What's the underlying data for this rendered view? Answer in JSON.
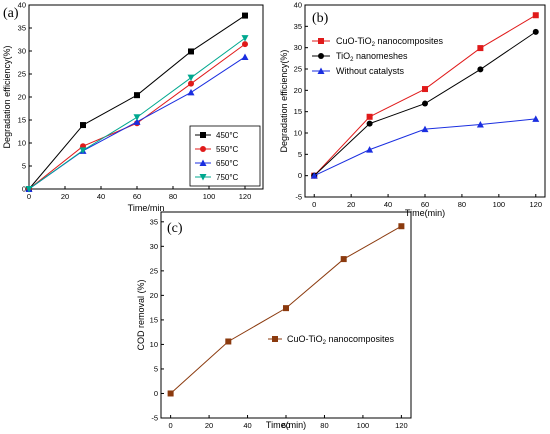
{
  "chart_data": [
    {
      "panel": "(a)",
      "type": "line",
      "xlabel": "Time/min",
      "ylabel": "Degradation efficiency(%)",
      "xlim": [
        0,
        130
      ],
      "ylim": [
        0,
        40
      ],
      "xticks": [
        0,
        20,
        40,
        60,
        80,
        100,
        120
      ],
      "yticks": [
        0,
        5,
        10,
        15,
        20,
        25,
        30,
        35,
        40
      ],
      "x": [
        0,
        30,
        60,
        90,
        120
      ],
      "legend_position": "bottom-right",
      "series": [
        {
          "name": "450°C",
          "color": "#000000",
          "marker": "square",
          "values": [
            0,
            13.9,
            20.4,
            29.9,
            37.7
          ]
        },
        {
          "name": "550°C",
          "color": "#e01a1a",
          "marker": "circle",
          "values": [
            0,
            9.3,
            14.3,
            22.9,
            31.5
          ]
        },
        {
          "name": "650°C",
          "color": "#1a2ee0",
          "marker": "triangle-up",
          "values": [
            0,
            8.3,
            14.6,
            21.0,
            28.7
          ]
        },
        {
          "name": "750°C",
          "color": "#00a88f",
          "marker": "triangle-down",
          "values": [
            0,
            8.4,
            15.6,
            24.2,
            32.8
          ]
        }
      ]
    },
    {
      "panel": "(b)",
      "type": "line",
      "xlabel": "Time(min)",
      "ylabel": "Degradation efficiency(%)",
      "xlim": [
        -5,
        125
      ],
      "ylim": [
        -5,
        40
      ],
      "xticks": [
        0,
        20,
        40,
        60,
        80,
        100,
        120
      ],
      "yticks": [
        -5,
        0,
        5,
        10,
        15,
        20,
        25,
        30,
        35,
        40
      ],
      "x": [
        0,
        30,
        60,
        90,
        120
      ],
      "legend_position": "top-left",
      "series": [
        {
          "name_main": "CuO-TiO",
          "name_sub": "2",
          "name_rest": " nanocomposites",
          "color": "#e01a1a",
          "marker": "square",
          "values": [
            0,
            13.8,
            20.3,
            29.9,
            37.6
          ]
        },
        {
          "name_main": "TiO",
          "name_sub": "2",
          "name_rest": " nanomeshes",
          "color": "#000000",
          "marker": "circle",
          "values": [
            0,
            12.2,
            16.9,
            24.9,
            33.7
          ]
        },
        {
          "name_main": "Without catalysts",
          "name_sub": "",
          "name_rest": "",
          "color": "#1a2ee0",
          "marker": "triangle-up",
          "values": [
            0,
            6.1,
            10.9,
            12.0,
            13.3
          ]
        }
      ]
    },
    {
      "panel": "(c)",
      "type": "line",
      "xlabel": "Time(min)",
      "ylabel": "COD removal (%)",
      "xlim": [
        -5,
        125
      ],
      "ylim": [
        -5,
        37
      ],
      "xticks": [
        0,
        20,
        40,
        60,
        80,
        100,
        120
      ],
      "yticks": [
        -5,
        0,
        5,
        10,
        15,
        20,
        25,
        30,
        35
      ],
      "x": [
        0,
        30,
        60,
        90,
        120
      ],
      "legend_position": "center-right",
      "series": [
        {
          "name_main": "CuO-TiO",
          "name_sub": "2",
          "name_rest": " nanocomposites",
          "color": "#8b3a0e",
          "marker": "square",
          "values": [
            0,
            10.6,
            17.4,
            27.4,
            34.1
          ]
        }
      ]
    }
  ]
}
